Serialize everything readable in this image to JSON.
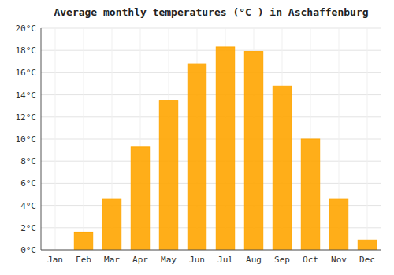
{
  "chart_data": {
    "type": "bar",
    "title": "Average monthly temperatures (°C ) in Aschaffenburg",
    "categories": [
      "Jan",
      "Feb",
      "Mar",
      "Apr",
      "May",
      "Jun",
      "Jul",
      "Aug",
      "Sep",
      "Oct",
      "Nov",
      "Dec"
    ],
    "values": [
      0.0,
      1.6,
      4.6,
      9.3,
      13.5,
      16.8,
      18.3,
      17.9,
      14.8,
      10.0,
      4.6,
      0.9
    ],
    "color": "#FFA500",
    "ylim": [
      0,
      20
    ],
    "yticks": [
      {
        "value": 0,
        "label": "0°C"
      },
      {
        "value": 2,
        "label": "2°C"
      },
      {
        "value": 4,
        "label": "4°C"
      },
      {
        "value": 6,
        "label": "6°C"
      },
      {
        "value": 8,
        "label": "8°C"
      },
      {
        "value": 10,
        "label": "10°C"
      },
      {
        "value": 12,
        "label": "12°C"
      },
      {
        "value": 14,
        "label": "14°C"
      },
      {
        "value": 16,
        "label": "16°C"
      },
      {
        "value": 18,
        "label": "18°C"
      },
      {
        "value": 20,
        "label": "20°C"
      }
    ],
    "grid": true
  }
}
